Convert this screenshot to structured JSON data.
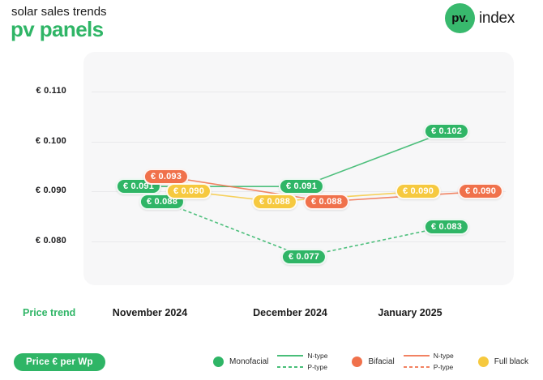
{
  "header": {
    "subtitle": "solar sales trends",
    "title": "pv panels",
    "logo": {
      "circle_text": "pv.",
      "text": "index"
    }
  },
  "colors": {
    "green": "#2fb566",
    "orange": "#f0714b",
    "yellow": "#f6c93f"
  },
  "chart_data": {
    "type": "line",
    "title": "pv panels price trend",
    "unit": "€",
    "categories": [
      "November 2024",
      "December 2024",
      "January 2025"
    ],
    "y_ticks": [
      0.11,
      0.1,
      0.09,
      0.08
    ],
    "ylim": [
      0.072,
      0.116
    ],
    "grid": true,
    "legend_position": "bottom-right",
    "series": [
      {
        "name": "Monofacial N-type",
        "color": "#2fb566",
        "style": "solid",
        "values": [
          0.091,
          0.091,
          0.102
        ],
        "label_dx": [
          -14,
          14,
          45
        ]
      },
      {
        "name": "Monofacial P-type",
        "color": "#2fb566",
        "style": "dashed",
        "values": [
          0.088,
          0.077,
          0.083
        ],
        "label_dx": [
          15,
          17,
          45
        ]
      },
      {
        "name": "Bifacial N-type",
        "color": "#f0714b",
        "style": "solid",
        "values": [
          0.093,
          0.088,
          0.09
        ],
        "label_dx": [
          20,
          45,
          87
        ]
      },
      {
        "name": "Full black",
        "color": "#f6c93f",
        "style": "solid",
        "values": [
          0.09,
          0.088,
          0.09
        ],
        "label_dx": [
          48,
          -19,
          10
        ]
      }
    ]
  },
  "axis_row": {
    "price_trend_label": "Price trend"
  },
  "footer": {
    "price_unit_label": "Price € per Wp",
    "legend": [
      {
        "name": "Monofacial",
        "color": "#2fb566",
        "line_types": [
          {
            "style": "solid",
            "label": "N-type"
          },
          {
            "style": "dashed",
            "label": "P-type"
          }
        ]
      },
      {
        "name": "Bifacial",
        "color": "#f0714b",
        "line_types": [
          {
            "style": "solid",
            "label": "N-type"
          },
          {
            "style": "dashed",
            "label": "P-type"
          }
        ]
      },
      {
        "name": "Full black",
        "color": "#f6c93f",
        "line_types": []
      }
    ]
  }
}
